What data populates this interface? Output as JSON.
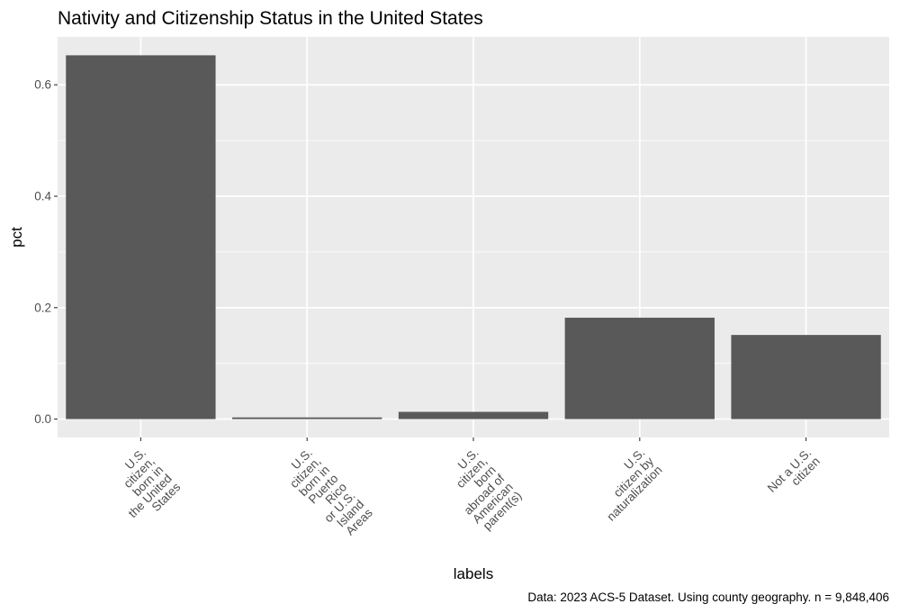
{
  "chart_data": {
    "type": "bar",
    "title": "Nativity and Citizenship Status in the United States",
    "xlabel": "labels",
    "ylabel": "pct",
    "categories": [
      "U.S. citizen, born in the United States",
      "U.S. citizen, born in Puerto Rico or U.S. Island Areas",
      "U.S. citizen, born abroad of American parent(s)",
      "U.S. citizen by naturalization",
      "Not a U.S. citizen"
    ],
    "category_lines": [
      [
        "U.S.",
        "citizen,",
        "born in",
        "the United",
        "States"
      ],
      [
        "U.S.",
        "citizen,",
        "born in",
        "Puerto",
        "Rico",
        "or U.S.",
        "Island",
        "Areas"
      ],
      [
        "U.S.",
        "citizen,",
        "born",
        "abroad of",
        "American",
        "parent(s)"
      ],
      [
        "U.S.",
        "citizen by",
        "naturalization"
      ],
      [
        "Not a U.S.",
        "citizen"
      ]
    ],
    "values": [
      0.653,
      0.003,
      0.013,
      0.182,
      0.151
    ],
    "yticks": [
      0.0,
      0.2,
      0.4,
      0.6
    ],
    "ytick_labels": [
      "0.0",
      "0.2",
      "0.4",
      "0.6"
    ],
    "ylim": [
      -0.033,
      0.686
    ],
    "grid": true,
    "bar_color": "#595959",
    "panel_color": "#ebebeb",
    "caption": "Data:  2023  ACS-5 Dataset. Using  county  geography. n =  9,848,406"
  }
}
